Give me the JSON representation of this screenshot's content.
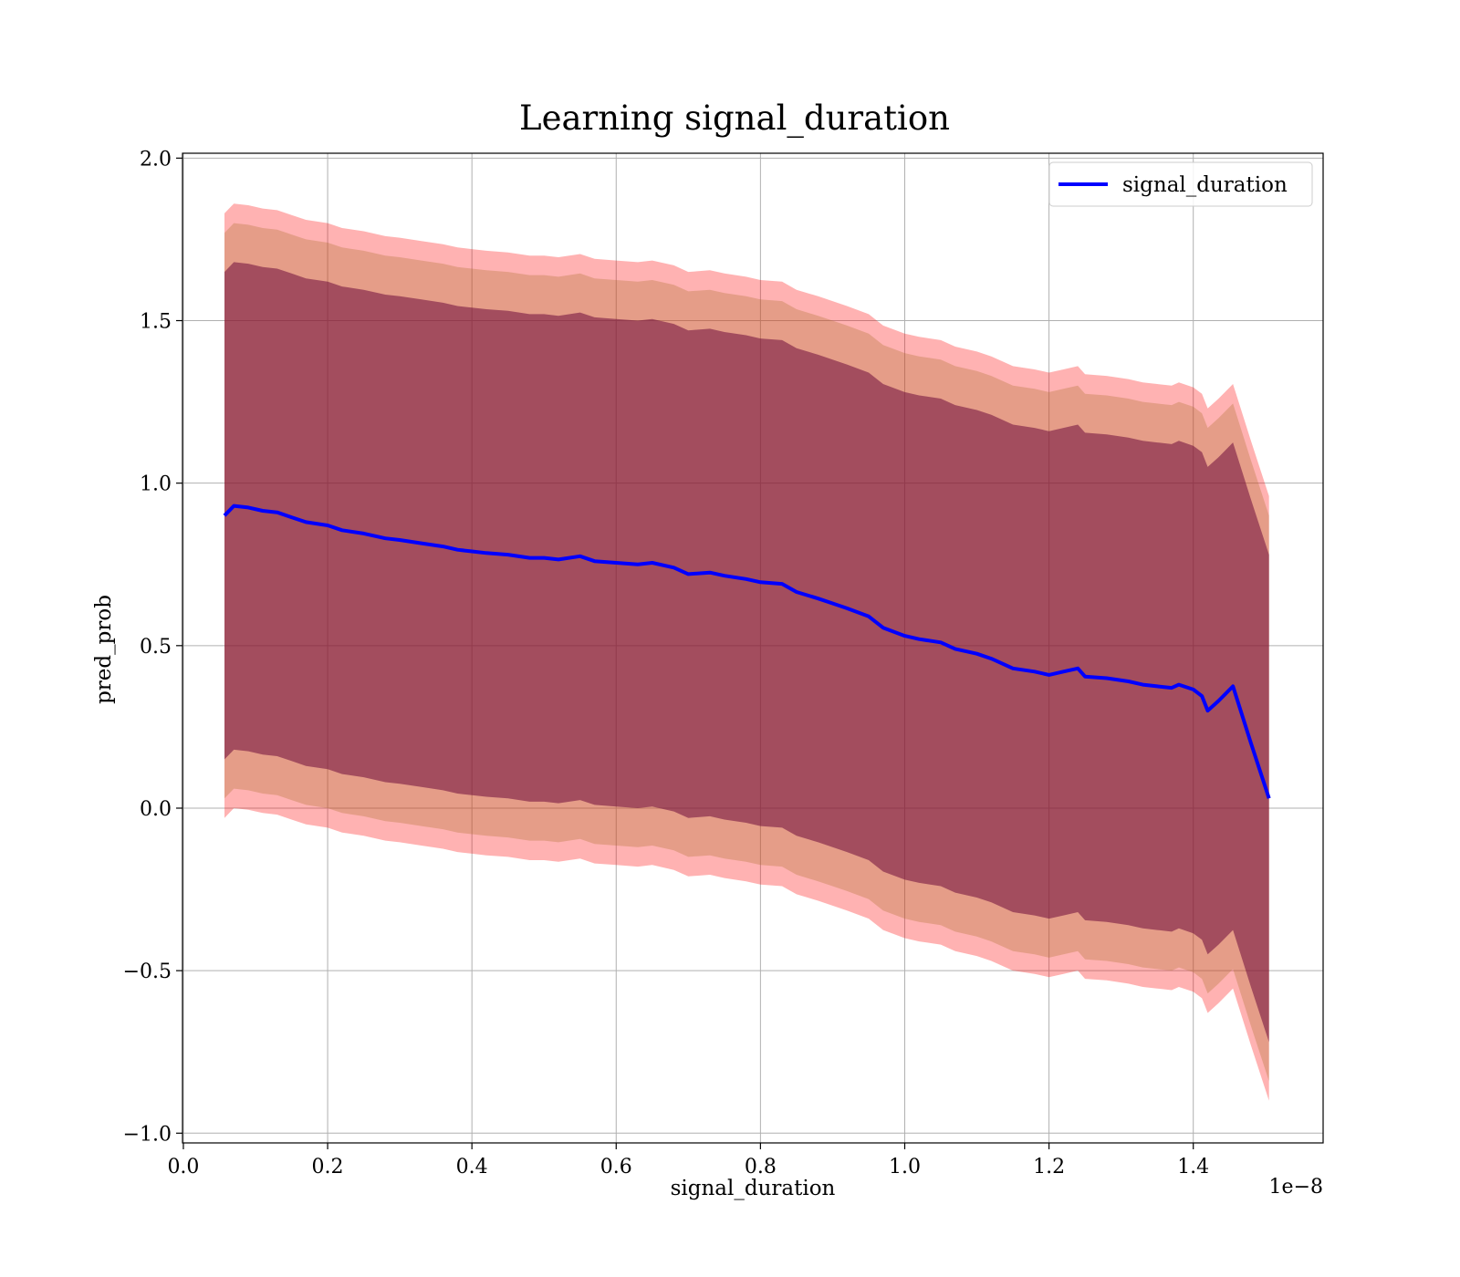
{
  "chart_data": {
    "type": "line",
    "title": "Learning signal_duration",
    "xlabel": "signal_duration",
    "ylabel": "pred_prob",
    "x_offset_label": "1e−8",
    "xlim": [
      -0.0012,
      1.58
    ],
    "ylim": [
      -1.03,
      2.015
    ],
    "x_ticks": [
      0.0,
      0.2,
      0.4,
      0.6,
      0.8,
      1.0,
      1.2,
      1.4
    ],
    "x_tick_labels": [
      "0.0",
      "0.2",
      "0.4",
      "0.6",
      "0.8",
      "1.0",
      "1.2",
      "1.4"
    ],
    "y_ticks": [
      -1.0,
      -0.5,
      0.0,
      0.5,
      1.0,
      1.5,
      2.0
    ],
    "y_tick_labels": [
      "−1.0",
      "−0.5",
      "0.0",
      "0.5",
      "1.0",
      "1.5",
      "2.0"
    ],
    "grid": true,
    "legend": {
      "position": "top-right",
      "entries": [
        {
          "name": "signal_duration",
          "color": "#0000ff"
        }
      ]
    },
    "band_colors": {
      "outer": "#ff0000",
      "middle": "#aa6e28",
      "inner": "#6e0b3c"
    },
    "band_half_widths": {
      "outer": 0.93,
      "middle": 0.87,
      "inner": 0.75
    },
    "series": [
      {
        "name": "signal_duration",
        "color": "#0000ff",
        "x": [
          0.057,
          0.07,
          0.09,
          0.11,
          0.13,
          0.15,
          0.17,
          0.2,
          0.22,
          0.25,
          0.28,
          0.3,
          0.33,
          0.36,
          0.38,
          0.4,
          0.42,
          0.45,
          0.48,
          0.5,
          0.52,
          0.55,
          0.57,
          0.6,
          0.63,
          0.65,
          0.68,
          0.7,
          0.73,
          0.75,
          0.78,
          0.8,
          0.83,
          0.85,
          0.88,
          0.9,
          0.92,
          0.95,
          0.97,
          1.0,
          1.02,
          1.05,
          1.07,
          1.1,
          1.12,
          1.15,
          1.18,
          1.2,
          1.22,
          1.24,
          1.25,
          1.28,
          1.31,
          1.33,
          1.35,
          1.37,
          1.38,
          1.4,
          1.412,
          1.42,
          1.435,
          1.455,
          1.48,
          1.505
        ],
        "y": [
          0.9,
          0.93,
          0.925,
          0.915,
          0.91,
          0.895,
          0.88,
          0.87,
          0.855,
          0.845,
          0.83,
          0.825,
          0.815,
          0.805,
          0.795,
          0.79,
          0.785,
          0.78,
          0.77,
          0.77,
          0.765,
          0.775,
          0.76,
          0.755,
          0.75,
          0.755,
          0.74,
          0.72,
          0.725,
          0.715,
          0.705,
          0.695,
          0.69,
          0.665,
          0.645,
          0.63,
          0.615,
          0.59,
          0.555,
          0.53,
          0.52,
          0.51,
          0.49,
          0.475,
          0.46,
          0.43,
          0.42,
          0.41,
          0.42,
          0.43,
          0.405,
          0.4,
          0.39,
          0.38,
          0.375,
          0.37,
          0.38,
          0.365,
          0.345,
          0.3,
          0.33,
          0.375,
          0.2,
          0.03
        ]
      }
    ]
  }
}
